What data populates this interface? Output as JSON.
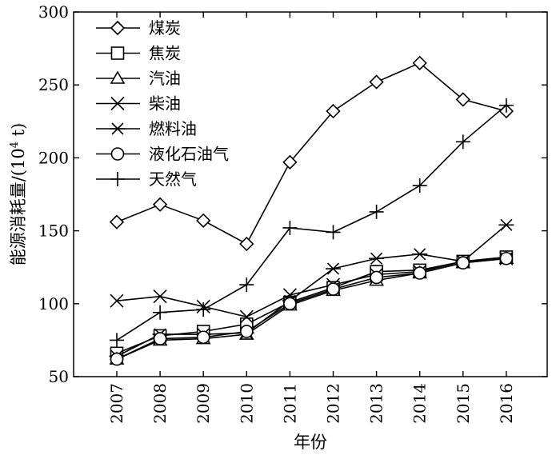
{
  "chart_data": {
    "type": "line",
    "title": "",
    "xlabel": "年份",
    "ylabel": "能源消耗量/(10",
    "ylabel_sup": "4",
    "ylabel_unit": " t)",
    "x": [
      "2007",
      "2008",
      "2009",
      "2010",
      "2011",
      "2012",
      "2013",
      "2014",
      "2015",
      "2016"
    ],
    "ylim": [
      50,
      300
    ],
    "yticks": [
      50,
      100,
      150,
      200,
      250,
      300
    ],
    "grid": false,
    "legend_position": "top-left",
    "series": [
      {
        "name": "煤炭",
        "marker": "diamond",
        "values": [
          156,
          168,
          157,
          141,
          197,
          232,
          252,
          265,
          240,
          232
        ]
      },
      {
        "name": "焦炭",
        "marker": "square",
        "values": [
          66,
          78,
          81,
          86,
          101,
          111,
          122,
          123,
          129,
          132
        ]
      },
      {
        "name": "汽油",
        "marker": "triangle",
        "values": [
          62,
          75,
          76,
          79,
          99,
          109,
          116,
          121,
          128,
          131
        ]
      },
      {
        "name": "柴油",
        "marker": "x",
        "values": [
          102,
          105,
          98,
          91,
          106,
          113,
          120,
          122,
          129,
          131
        ]
      },
      {
        "name": "燃料油",
        "marker": "star",
        "values": [
          64,
          79,
          79,
          80,
          102,
          124,
          131,
          134,
          129,
          154
        ]
      },
      {
        "name": "液化石油气",
        "marker": "circle",
        "values": [
          62,
          76,
          77,
          81,
          100,
          110,
          118,
          121,
          128,
          131
        ]
      },
      {
        "name": "天然气",
        "marker": "plus",
        "values": [
          75,
          94,
          96,
          113,
          152,
          149,
          163,
          181,
          211,
          236
        ]
      }
    ]
  }
}
